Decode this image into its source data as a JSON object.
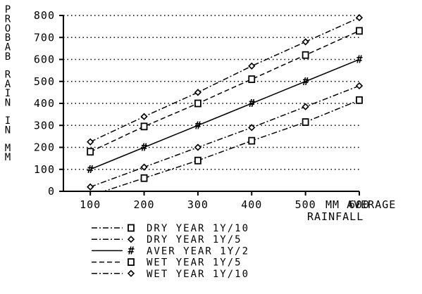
{
  "chart_data": {
    "type": "line",
    "ylabel": "PROBAB RAIN IN MM",
    "xlabel_line1": "MM AVERAGE",
    "xlabel_line2": "RAINFALL",
    "x": [
      100,
      200,
      300,
      400,
      500,
      600
    ],
    "xlim": [
      50,
      600
    ],
    "ylim": [
      0,
      800
    ],
    "x_ticks": [
      100,
      200,
      300,
      400,
      500,
      600
    ],
    "y_ticks": [
      0,
      100,
      200,
      300,
      400,
      500,
      600,
      700,
      800
    ],
    "grid": "horizontal dotted",
    "legend_position": "bottom",
    "series": [
      {
        "name": "DRY YEAR 1Y/10",
        "marker": "square",
        "dash": "dash-dot",
        "values": [
          -20,
          60,
          140,
          230,
          315,
          415
        ]
      },
      {
        "name": "DRY YEAR 1Y/5",
        "marker": "diamond",
        "dash": "dash-dot",
        "values": [
          20,
          110,
          200,
          290,
          385,
          480
        ]
      },
      {
        "name": "AVER YEAR 1Y/2",
        "marker": "hash",
        "dash": "solid",
        "values": [
          100,
          200,
          300,
          400,
          500,
          600
        ]
      },
      {
        "name": "WET YEAR 1Y/5",
        "marker": "square",
        "dash": "dashed",
        "values": [
          180,
          295,
          400,
          510,
          620,
          730
        ]
      },
      {
        "name": "WET YEAR 1Y/10",
        "marker": "diamond",
        "dash": "dash-dot",
        "values": [
          225,
          340,
          450,
          570,
          680,
          790
        ]
      }
    ]
  }
}
